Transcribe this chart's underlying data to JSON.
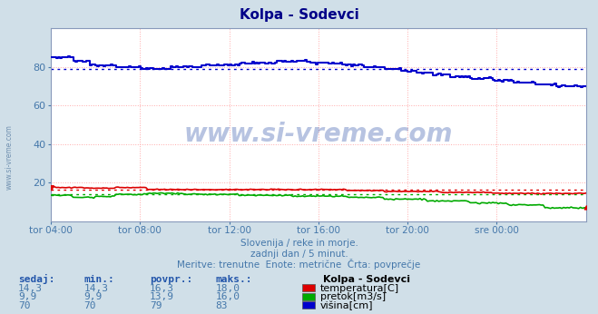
{
  "title": "Kolpa - Sodevci",
  "bg_color": "#d0dfe8",
  "plot_bg_color": "#ffffff",
  "x_labels": [
    "tor 04:00",
    "tor 08:00",
    "tor 12:00",
    "tor 16:00",
    "tor 20:00",
    "sre 00:00"
  ],
  "x_ticks_norm": [
    0.0,
    0.1667,
    0.3333,
    0.5,
    0.6667,
    0.8333
  ],
  "ylim": [
    0,
    100
  ],
  "ytick_vals": [
    20,
    40,
    60,
    80
  ],
  "avg_temp": 16.3,
  "avg_pretok": 13.9,
  "avg_visina": 79,
  "watermark": "www.si-vreme.com",
  "subtitle1": "Slovenija / reke in morje.",
  "subtitle2": "zadnji dan / 5 minut.",
  "subtitle3": "Meritve: trenutne  Enote: metrične  Črta: povprečje",
  "legend_title": "Kolpa - Sodevci",
  "legend_items": [
    {
      "label": "temperatura[C]",
      "color": "#dd0000"
    },
    {
      "label": "pretok[m3/s]",
      "color": "#00aa00"
    },
    {
      "label": "višina[cm]",
      "color": "#0000cc"
    }
  ],
  "table_headers": [
    "sedaj:",
    "min.:",
    "povpr.:",
    "maks.:"
  ],
  "table_data": [
    [
      "14,3",
      "14,3",
      "16,3",
      "18,0"
    ],
    [
      "9,9",
      "9,9",
      "13,9",
      "16,0"
    ],
    [
      "70",
      "70",
      "79",
      "83"
    ]
  ],
  "temp_color": "#dd0000",
  "pretok_color": "#00aa00",
  "visina_color": "#0000cc",
  "text_color": "#4477aa",
  "header_color": "#2255aa",
  "title_color": "#000088"
}
